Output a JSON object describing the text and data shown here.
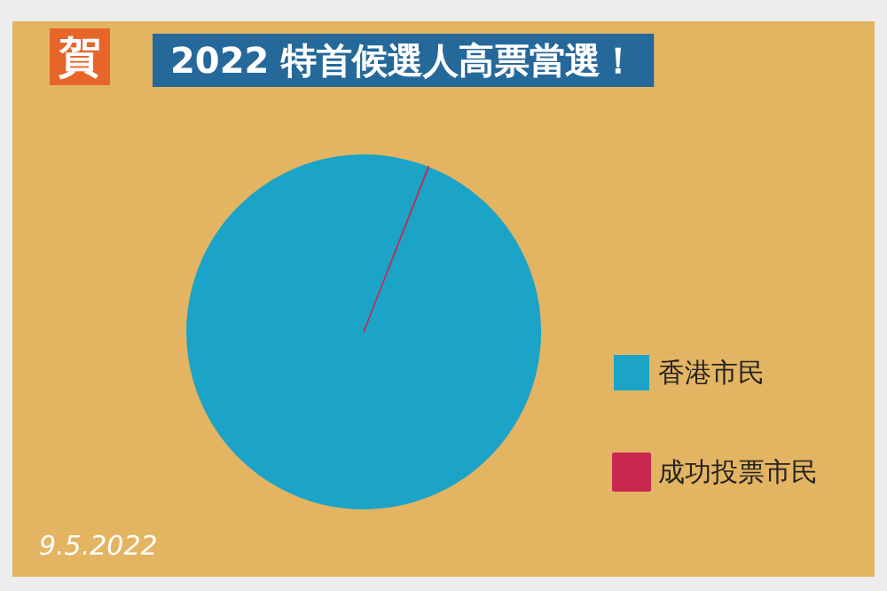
{
  "chart_data": {
    "type": "pie",
    "title": "賀",
    "subtitle": "2022 特首候選人高票當選！",
    "categories": [
      "香港市民",
      "成功投票市民"
    ],
    "values": [
      99.98,
      0.02
    ],
    "colors": [
      "#1ba3c8",
      "#c8284f"
    ],
    "legend": "right",
    "annotations": [
      "9.5.2022"
    ]
  }
}
